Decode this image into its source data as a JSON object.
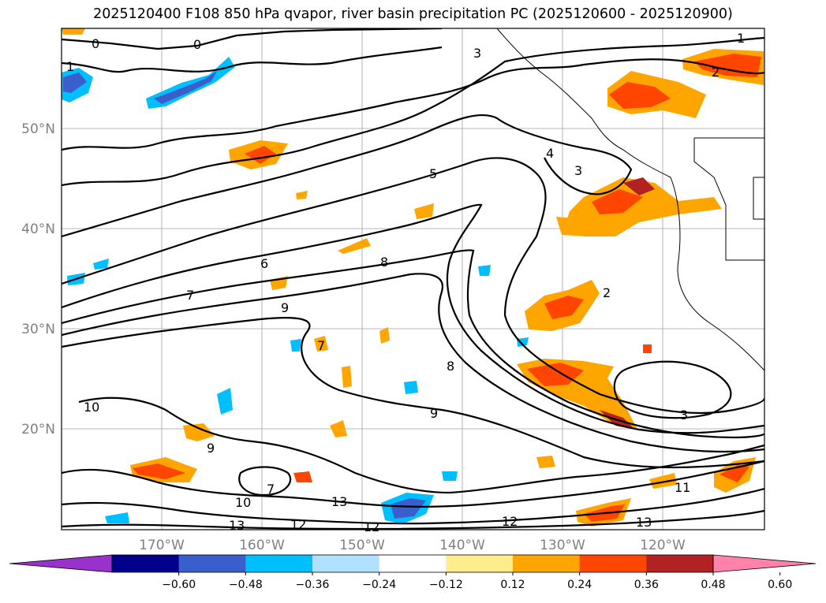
{
  "title": "2025120400 F108 850 hPa qvapor, river basin precipitation PC (2025120600 - 2025120900)",
  "lat_labels": [
    "50°N",
    "40°N",
    "30°N",
    "20°N"
  ],
  "lon_labels": [
    "170°W",
    "160°W",
    "150°W",
    "140°W",
    "130°W",
    "120°W"
  ],
  "colorbar": {
    "colors": [
      "#9932cc",
      "#00008b",
      "#3a5fcd",
      "#00bfff",
      "#b0e2ff",
      "#ffffff",
      "#ffec8b",
      "#ffa500",
      "#ff4500",
      "#b22222",
      "#ff82ab"
    ],
    "tick_labels": [
      "−0.60",
      "−0.48",
      "−0.36",
      "−0.24",
      "−0.12",
      "0.12",
      "0.24",
      "0.36",
      "0.48",
      "0.60"
    ]
  },
  "contour_labels": [
    "0",
    "0",
    "1",
    "1",
    "2",
    "2",
    "3",
    "3",
    "3",
    "4",
    "5",
    "6",
    "7",
    "8",
    "9",
    "9",
    "10",
    "10",
    "7",
    "11",
    "12",
    "12",
    "13",
    "13",
    "12",
    "13",
    "7",
    "8",
    "9"
  ]
}
